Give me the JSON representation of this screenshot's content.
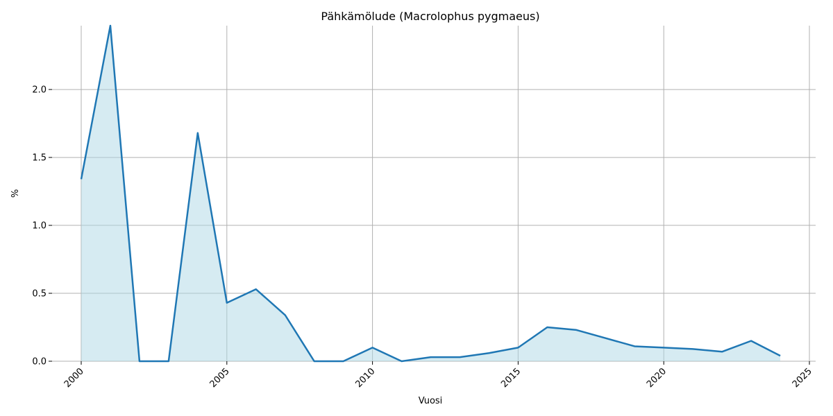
{
  "chart_data": {
    "type": "area",
    "title": "Pähkämölude (Macrolophus pygmaeus)",
    "xlabel": "Vuosi",
    "ylabel": "%",
    "xlim": [
      2000,
      2025
    ],
    "ylim": [
      0,
      2.47
    ],
    "xticks": [
      "2000",
      "2005",
      "2010",
      "2015",
      "2020",
      "2025"
    ],
    "yticks": [
      "0.0",
      "0.5",
      "1.0",
      "1.5",
      "2.0"
    ],
    "grid": true,
    "x": [
      2000,
      2001,
      2002,
      2003,
      2004,
      2005,
      2006,
      2007,
      2008,
      2009,
      2010,
      2011,
      2012,
      2013,
      2014,
      2015,
      2016,
      2017,
      2018,
      2019,
      2020,
      2021,
      2022,
      2023,
      2024
    ],
    "values": [
      1.34,
      2.47,
      0.0,
      0.0,
      1.68,
      0.43,
      0.53,
      0.34,
      0.0,
      0.0,
      0.1,
      0.0,
      0.03,
      0.03,
      0.06,
      0.1,
      0.25,
      0.23,
      0.17,
      0.11,
      0.1,
      0.09,
      0.07,
      0.15,
      0.04
    ],
    "line_color": "#1f77b4",
    "fill_color": "#add8e6"
  }
}
